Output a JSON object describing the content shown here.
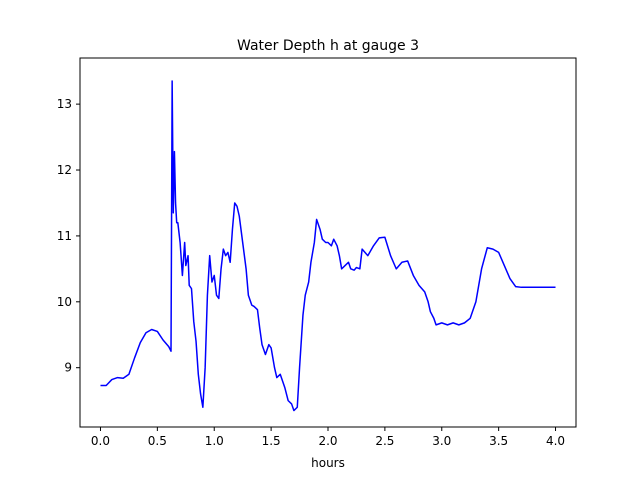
{
  "chart_data": {
    "type": "line",
    "title": "Water Depth h at gauge 3",
    "xlabel": "hours",
    "ylabel": "",
    "xlim": [
      -0.18,
      4.18
    ],
    "ylim": [
      8.1,
      13.7
    ],
    "xticks": [
      0.0,
      0.5,
      1.0,
      1.5,
      2.0,
      2.5,
      3.0,
      3.5,
      4.0
    ],
    "xtick_labels": [
      "0.0",
      "0.5",
      "1.0",
      "1.5",
      "2.0",
      "2.5",
      "3.0",
      "3.5",
      "4.0"
    ],
    "yticks": [
      9,
      10,
      11,
      12,
      13
    ],
    "ytick_labels": [
      "9",
      "10",
      "11",
      "12",
      "13"
    ],
    "grid": false,
    "legend": "none",
    "series": [
      {
        "color": "#0000ff",
        "x": [
          0.0,
          0.05,
          0.1,
          0.15,
          0.2,
          0.25,
          0.3,
          0.35,
          0.4,
          0.45,
          0.5,
          0.55,
          0.6,
          0.62,
          0.63,
          0.64,
          0.65,
          0.66,
          0.67,
          0.68,
          0.7,
          0.72,
          0.74,
          0.75,
          0.77,
          0.78,
          0.8,
          0.82,
          0.84,
          0.86,
          0.88,
          0.9,
          0.92,
          0.94,
          0.96,
          0.98,
          1.0,
          1.02,
          1.04,
          1.06,
          1.08,
          1.1,
          1.12,
          1.14,
          1.16,
          1.18,
          1.2,
          1.22,
          1.25,
          1.28,
          1.3,
          1.33,
          1.35,
          1.38,
          1.4,
          1.42,
          1.45,
          1.48,
          1.5,
          1.53,
          1.55,
          1.58,
          1.6,
          1.62,
          1.65,
          1.68,
          1.7,
          1.73,
          1.75,
          1.78,
          1.8,
          1.83,
          1.85,
          1.88,
          1.9,
          1.93,
          1.95,
          1.98,
          2.0,
          2.03,
          2.05,
          2.08,
          2.1,
          2.12,
          2.15,
          2.18,
          2.2,
          2.23,
          2.25,
          2.28,
          2.3,
          2.35,
          2.4,
          2.45,
          2.5,
          2.55,
          2.6,
          2.65,
          2.7,
          2.75,
          2.8,
          2.85,
          2.88,
          2.9,
          2.93,
          2.95,
          3.0,
          3.05,
          3.1,
          3.15,
          3.2,
          3.25,
          3.3,
          3.35,
          3.4,
          3.45,
          3.5,
          3.55,
          3.6,
          3.65,
          3.7,
          3.75,
          3.8,
          3.85,
          3.9,
          3.95,
          4.0
        ],
        "y": [
          8.73,
          8.73,
          8.82,
          8.85,
          8.84,
          8.9,
          9.15,
          9.38,
          9.53,
          9.58,
          9.55,
          9.42,
          9.32,
          9.25,
          13.35,
          11.35,
          12.28,
          11.5,
          11.2,
          11.2,
          10.9,
          10.4,
          10.9,
          10.55,
          10.7,
          10.25,
          10.2,
          9.7,
          9.4,
          8.9,
          8.6,
          8.4,
          9.0,
          10.1,
          10.7,
          10.3,
          10.4,
          10.1,
          10.05,
          10.5,
          10.8,
          10.7,
          10.75,
          10.6,
          11.1,
          11.5,
          11.45,
          11.3,
          10.9,
          10.5,
          10.1,
          9.95,
          9.93,
          9.88,
          9.6,
          9.35,
          9.2,
          9.35,
          9.3,
          9.0,
          8.85,
          8.9,
          8.8,
          8.7,
          8.5,
          8.45,
          8.35,
          8.4,
          9.0,
          9.8,
          10.1,
          10.3,
          10.6,
          10.9,
          11.25,
          11.1,
          10.95,
          10.9,
          10.9,
          10.85,
          10.95,
          10.85,
          10.7,
          10.5,
          10.55,
          10.6,
          10.5,
          10.48,
          10.52,
          10.5,
          10.8,
          10.7,
          10.85,
          10.97,
          10.98,
          10.7,
          10.5,
          10.6,
          10.62,
          10.4,
          10.25,
          10.15,
          10.0,
          9.85,
          9.75,
          9.65,
          9.68,
          9.65,
          9.68,
          9.65,
          9.68,
          9.75,
          10.0,
          10.5,
          10.82,
          10.8,
          10.75,
          10.55,
          10.35,
          10.23,
          10.22,
          10.22,
          10.22,
          10.22,
          10.22,
          10.22,
          10.22
        ]
      }
    ]
  }
}
